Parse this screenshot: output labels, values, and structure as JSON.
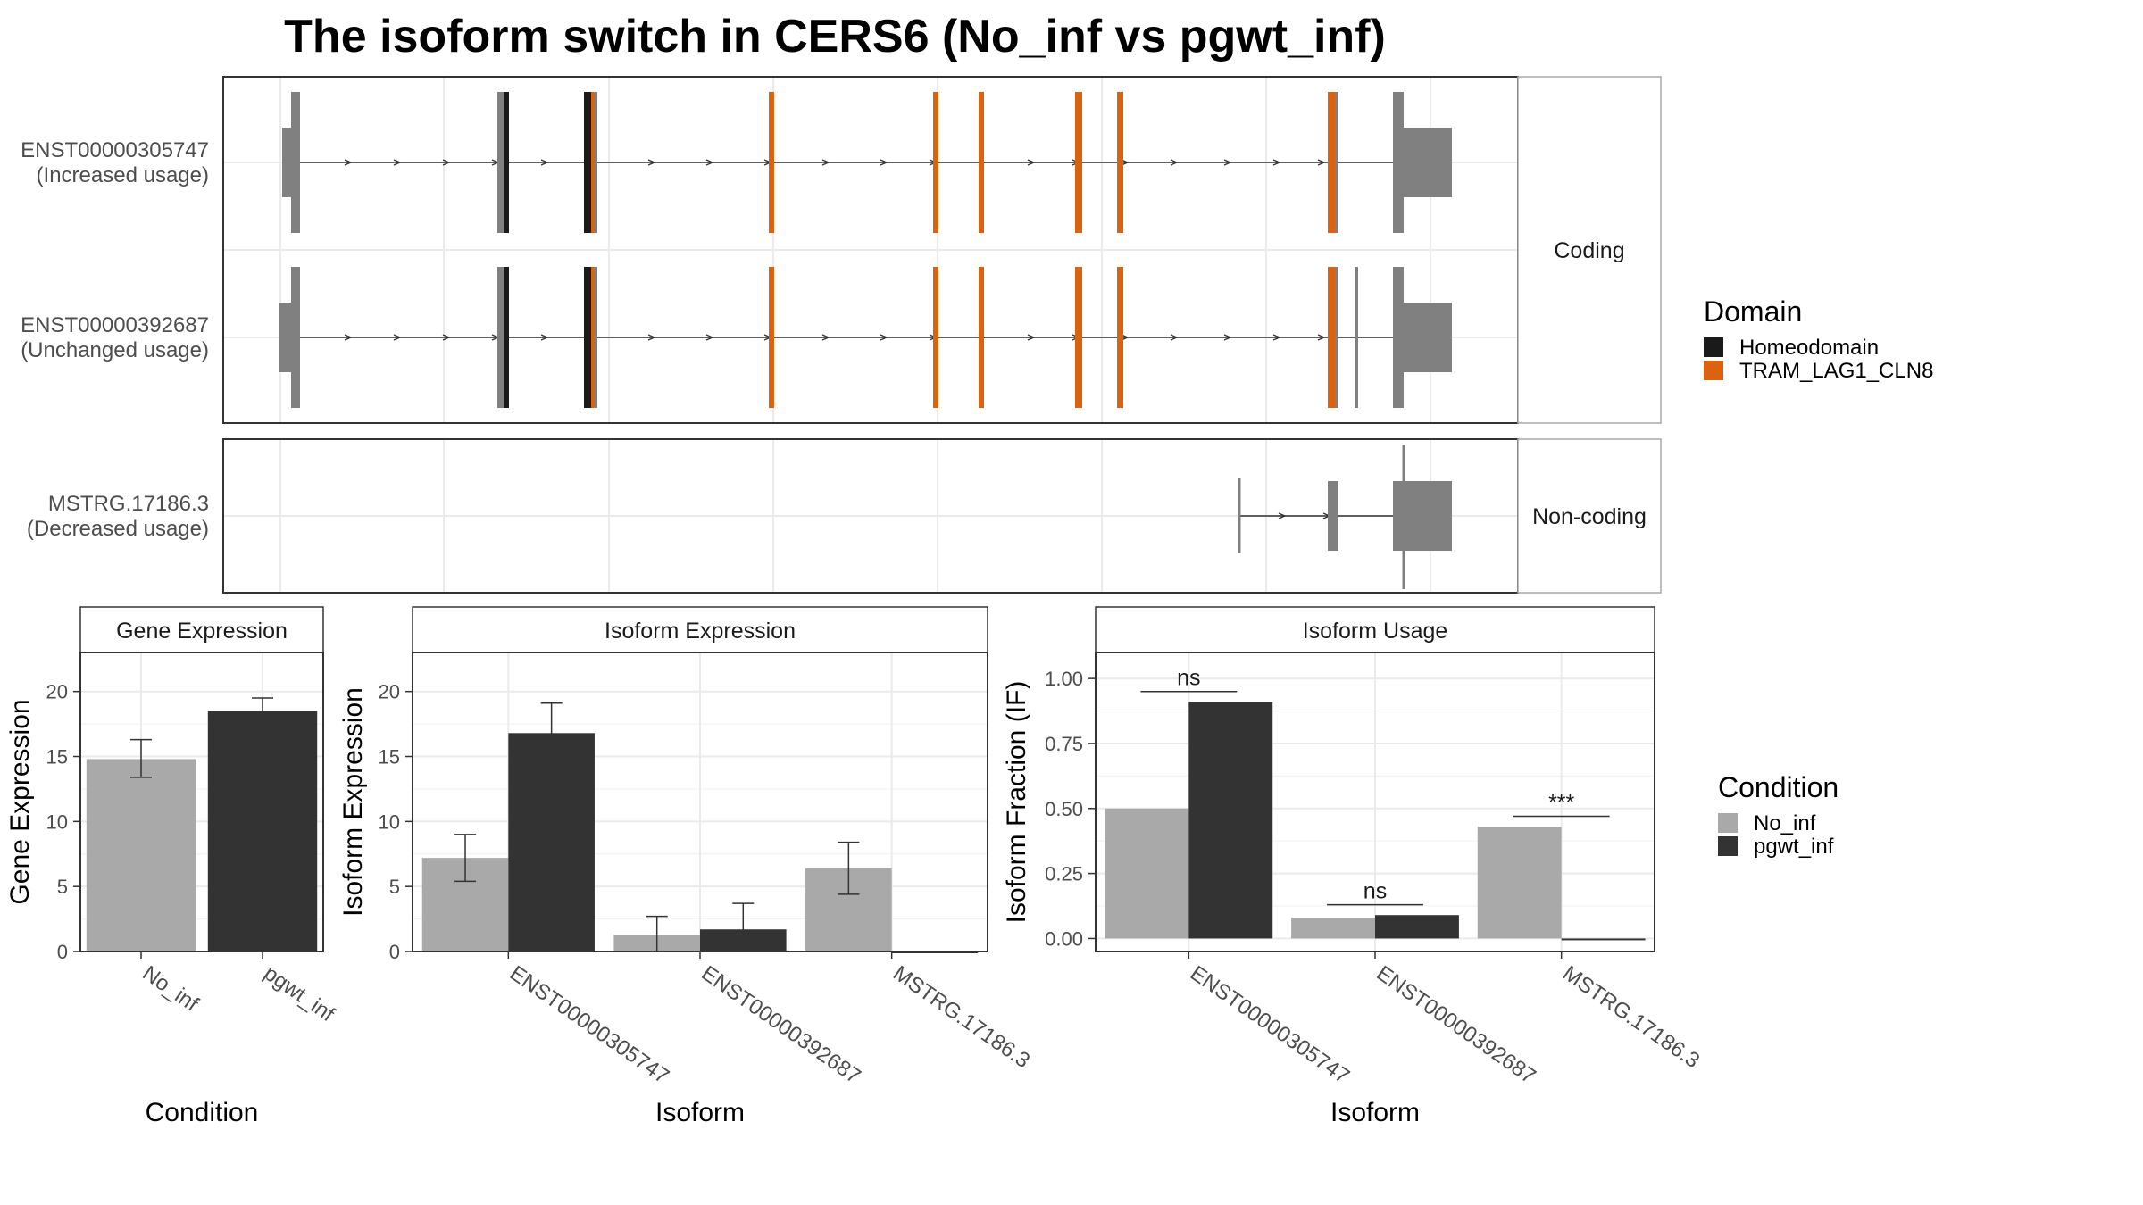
{
  "title": "The isoform switch in CERS6 (No_inf vs pgwt_inf)",
  "colors": {
    "exon": "#808080",
    "homeodomain": "#1a1a1a",
    "tram": "#d9630f",
    "no_inf": "#a9a9a9",
    "pgwt_inf": "#333333",
    "panel_border": "#333333",
    "grid": "#ebebeb",
    "strip_bg": "#ffffff"
  },
  "structure": {
    "coding_strip": "Coding",
    "noncoding_strip": "Non-coding",
    "isoforms": [
      {
        "id": "ENST00000305747",
        "usage": "(Increased usage)",
        "group": "coding"
      },
      {
        "id": "ENST00000392687",
        "usage": "(Unchanged usage)",
        "group": "coding"
      },
      {
        "id": "MSTRG.17186.3",
        "usage": "(Decreased usage)",
        "group": "noncoding"
      }
    ]
  },
  "domain_legend": {
    "title": "Domain",
    "items": [
      {
        "label": "Homeodomain",
        "color": "#1a1a1a"
      },
      {
        "label": "TRAM_LAG1_CLN8",
        "color": "#d9630f"
      }
    ]
  },
  "condition_legend": {
    "title": "Condition",
    "items": [
      {
        "label": "No_inf",
        "color": "#a9a9a9"
      },
      {
        "label": "pgwt_inf",
        "color": "#333333"
      }
    ]
  },
  "chart_data": [
    {
      "type": "bar",
      "strip": "Gene Expression",
      "xlabel": "Condition",
      "ylabel": "Gene Expression",
      "categories": [
        "No_inf",
        "pgwt_inf"
      ],
      "values": [
        14.8,
        18.5
      ],
      "errors": [
        [
          13.4,
          16.3
        ],
        [
          17.5,
          19.5
        ]
      ],
      "ylim": [
        0,
        23
      ],
      "yticks": [
        0,
        5,
        10,
        15,
        20
      ],
      "ytick_labels": [
        "0",
        "5",
        "10",
        "15",
        "20"
      ]
    },
    {
      "type": "bar",
      "strip": "Isoform Expression",
      "xlabel": "Isoform",
      "ylabel": "Isoform Expression",
      "categories": [
        "ENST00000305747",
        "ENST00000392687",
        "MSTRG.17186.3"
      ],
      "series": [
        {
          "name": "No_inf",
          "values": [
            7.2,
            1.3,
            6.4
          ],
          "errors": [
            [
              5.4,
              9.0
            ],
            [
              0.0,
              2.7
            ],
            [
              4.4,
              8.4
            ]
          ]
        },
        {
          "name": "pgwt_inf",
          "values": [
            16.8,
            1.7,
            0.0
          ],
          "errors": [
            [
              14.5,
              19.1
            ],
            [
              0.0,
              3.7
            ],
            [
              0.0,
              0.0
            ]
          ]
        }
      ],
      "ylim": [
        0,
        23
      ],
      "yticks": [
        0,
        5,
        10,
        15,
        20
      ],
      "ytick_labels": [
        "0",
        "5",
        "10",
        "15",
        "20"
      ]
    },
    {
      "type": "bar",
      "strip": "Isoform Usage",
      "xlabel": "Isoform",
      "ylabel": "Isoform Fraction (IF)",
      "categories": [
        "ENST00000305747",
        "ENST00000392687",
        "MSTRG.17186.3"
      ],
      "series": [
        {
          "name": "No_inf",
          "values": [
            0.5,
            0.08,
            0.43
          ]
        },
        {
          "name": "pgwt_inf",
          "values": [
            0.91,
            0.09,
            0.0
          ]
        }
      ],
      "significance": [
        "ns",
        "ns",
        "***"
      ],
      "ylim": [
        -0.05,
        1.1
      ],
      "yticks": [
        0,
        0.25,
        0.5,
        0.75,
        1.0
      ],
      "ytick_labels": [
        "0.00",
        "0.25",
        "0.50",
        "0.75",
        "1.00"
      ]
    }
  ]
}
